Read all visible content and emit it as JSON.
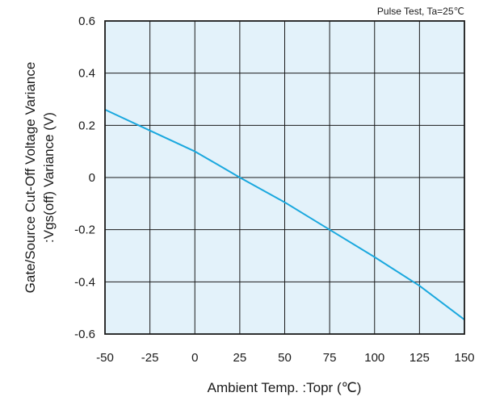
{
  "chart_data": {
    "type": "line",
    "title": "",
    "annotation": "Pulse Test, Ta=25℃",
    "xlabel": "Ambient Temp. :Topr (℃)",
    "ylabel_line1": "Gate/Source Cut-Off Voltage Variance",
    "ylabel_line2": ":Vgs(off)  Variance  (V)",
    "xlim": [
      -50,
      150
    ],
    "ylim": [
      -0.6,
      0.6
    ],
    "x_ticks": [
      -50,
      -25,
      0,
      25,
      50,
      75,
      100,
      125,
      150
    ],
    "x_tick_labels": [
      "-50",
      "-25",
      "0",
      "25",
      "50",
      "75",
      "100",
      "125",
      "150"
    ],
    "y_ticks": [
      0.6,
      0.4,
      0.2,
      0,
      -0.2,
      -0.4,
      -0.6
    ],
    "y_tick_labels": [
      "0.6",
      "0.4",
      "0.2",
      "0",
      "-0.2",
      "-0.4",
      "-0.6"
    ],
    "grid": true,
    "colors": {
      "plot_background": "#e3f2fa",
      "line": "#1aa8de",
      "grid": "#1a1a1a"
    },
    "series": [
      {
        "x": [
          -50,
          -25,
          0,
          12.5,
          25,
          50,
          75,
          100,
          125,
          150
        ],
        "y": [
          0.26,
          0.18,
          0.1,
          0.05,
          0.0,
          -0.095,
          -0.2,
          -0.305,
          -0.415,
          -0.545
        ]
      }
    ]
  }
}
